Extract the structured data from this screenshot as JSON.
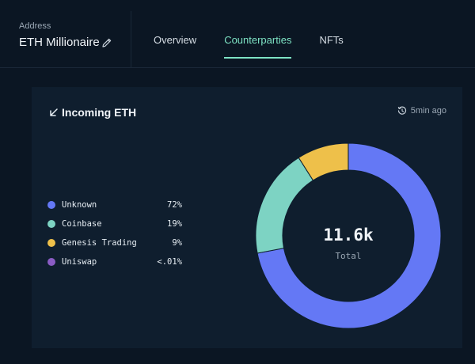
{
  "header": {
    "address_label": "Address",
    "address_name": "ETH Millionaire",
    "tabs": [
      {
        "label": "Overview",
        "active": false
      },
      {
        "label": "Counterparties",
        "active": true
      },
      {
        "label": "NFTs",
        "active": false
      }
    ]
  },
  "card": {
    "title": "Incoming ETH",
    "updated": "5min ago"
  },
  "colors": {
    "background": "#0b1623",
    "card": "#0f1e2e",
    "accent": "#7ee3c4"
  },
  "chart_data": {
    "type": "pie",
    "center_value": "11.6k",
    "center_label": "Total",
    "series": [
      {
        "name": "Unknown",
        "value": 72,
        "label": "72%",
        "color": "#6478f5"
      },
      {
        "name": "Coinbase",
        "value": 19,
        "label": "19%",
        "color": "#7dd3c3"
      },
      {
        "name": "Genesis Trading",
        "value": 9,
        "label": "9%",
        "color": "#eec04a"
      },
      {
        "name": "Uniswap",
        "value": 0.01,
        "label": "<.01%",
        "color": "#8a5cc4"
      }
    ]
  }
}
